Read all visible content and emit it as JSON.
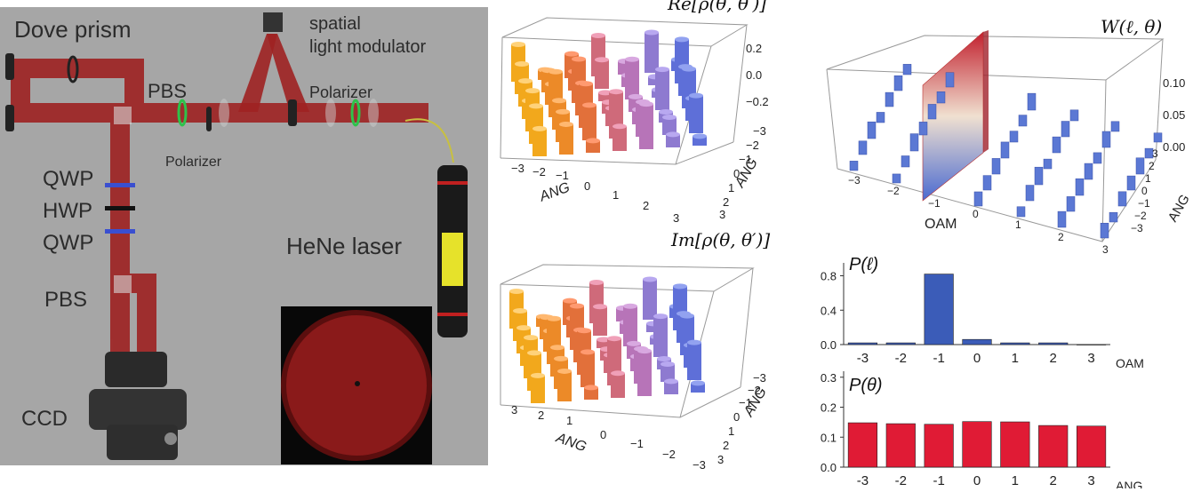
{
  "setup": {
    "labels": {
      "dove_prism": "Dove prism",
      "slm": "spatial\nlight modulator",
      "pbs_top": "PBS",
      "polarizer_left": "Polarizer",
      "polarizer_right": "Polarizer",
      "qwp1": "QWP",
      "hwp": "HWP",
      "qwp2": "QWP",
      "pbs_bottom": "PBS",
      "laser": "HeNe laser",
      "ccd": "CCD"
    },
    "colors": {
      "background": "#a6a6a6",
      "beam": "#a32424",
      "ccd_image": "#8a1a1a"
    }
  },
  "panels": {
    "re_rho": {
      "title": "Re[ρ(θ, θ′)]",
      "z_ticks": [
        "0.2",
        "0.0",
        "−0.2"
      ],
      "x_label": "ANG",
      "y_label": "ANG",
      "x_ticks": [
        "−3",
        "−2",
        "−1",
        "0",
        "1",
        "2",
        "3"
      ],
      "y_ticks": [
        "−3",
        "−2",
        "−1",
        "0",
        "1",
        "2",
        "3"
      ]
    },
    "im_rho": {
      "title": "Im[ρ(θ, θ′)]",
      "x_label": "ANG",
      "y_label": "ANG",
      "x_ticks": [
        "3",
        "2",
        "1",
        "0",
        "−1",
        "−2",
        "−3"
      ],
      "y_ticks": [
        "−3",
        "−2",
        "−1",
        "0",
        "1",
        "2",
        "3"
      ]
    },
    "wigner": {
      "title": "W(ℓ, θ)",
      "z_ticks": [
        "0.10",
        "0.05",
        "0.00"
      ],
      "x_label": "OAM",
      "y_label": "ANG",
      "x_ticks": [
        "−3",
        "−2",
        "−1",
        "0",
        "1",
        "2",
        "3"
      ],
      "y_ticks": [
        "3",
        "2",
        "1",
        "0",
        "−1",
        "−2",
        "−3"
      ]
    }
  },
  "chart_data": [
    {
      "type": "bar",
      "title": "P(ℓ)",
      "xlabel": "OAM",
      "categories": [
        "-3",
        "-2",
        "-1",
        "0",
        "1",
        "2",
        "3"
      ],
      "values": [
        0.02,
        0.02,
        0.82,
        0.06,
        0.02,
        0.02,
        0.0
      ],
      "ylim": [
        0,
        0.95
      ],
      "yticks": [
        "0.0",
        "0.4",
        "0.8"
      ],
      "color": "#3b5cb8"
    },
    {
      "type": "bar",
      "title": "P(θ)",
      "xlabel": "ANG",
      "categories": [
        "-3",
        "-2",
        "-1",
        "0",
        "1",
        "2",
        "3"
      ],
      "values": [
        0.148,
        0.145,
        0.143,
        0.152,
        0.151,
        0.139,
        0.137
      ],
      "ylim": [
        0,
        0.32
      ],
      "yticks": [
        "0.0",
        "0.1",
        "0.2",
        "0.3"
      ],
      "color": "#e01b35"
    }
  ]
}
